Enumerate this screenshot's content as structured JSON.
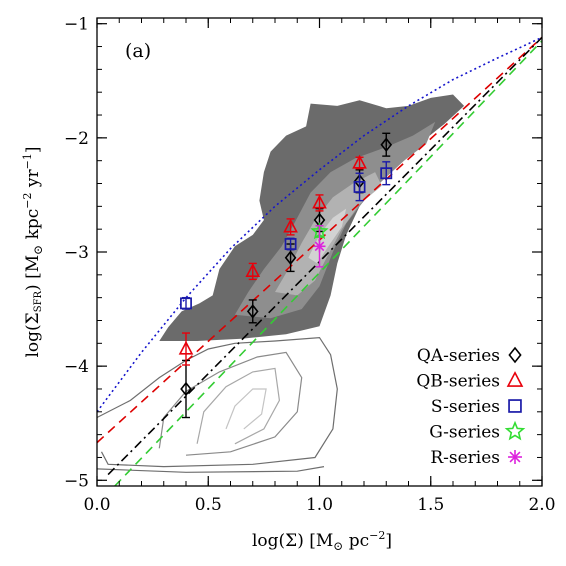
{
  "chart_data": {
    "type": "scatter",
    "panel_label": "(a)",
    "xlabel": {
      "pre": "log(Σ) [M",
      "sun": "⊙",
      "mid": " pc",
      "sup": "−2",
      "post": "]"
    },
    "ylabel": {
      "pre": "log(Σ",
      "sub": "SFR",
      "mid": ") [M",
      "sun": "⊙",
      "mid2": " kpc",
      "sup1": "−2",
      "mid3": " yr",
      "sup2": "−1",
      "post": "]"
    },
    "xlim": [
      0.0,
      2.0
    ],
    "ylim": [
      -5.05,
      -0.95
    ],
    "xticks": [
      {
        "v": 0.0,
        "label": "0.0"
      },
      {
        "v": 0.5,
        "label": "0.5"
      },
      {
        "v": 1.0,
        "label": "1.0"
      },
      {
        "v": 1.5,
        "label": "1.5"
      },
      {
        "v": 2.0,
        "label": "2.0"
      }
    ],
    "yticks": [
      {
        "v": -5,
        "label": "−5"
      },
      {
        "v": -4,
        "label": "−4"
      },
      {
        "v": -3,
        "label": "−3"
      },
      {
        "v": -2,
        "label": "−2"
      },
      {
        "v": -1,
        "label": "−1"
      }
    ],
    "grid": false,
    "legend_position": "lower-right",
    "series": [
      {
        "name": "QA-series",
        "marker": "diamond",
        "color": "#000000",
        "points": [
          {
            "x": 0.4,
            "y": -4.2,
            "err": 0.25
          },
          {
            "x": 0.7,
            "y": -3.52,
            "err": 0.1
          },
          {
            "x": 0.87,
            "y": -3.05,
            "err": 0.12
          },
          {
            "x": 1.0,
            "y": -2.72,
            "err": 0.1
          },
          {
            "x": 1.18,
            "y": -2.38,
            "err": 0.1
          },
          {
            "x": 1.3,
            "y": -2.06,
            "err": 0.1
          }
        ]
      },
      {
        "name": "QB-series",
        "marker": "triangle",
        "color": "#e8000b",
        "points": [
          {
            "x": 0.4,
            "y": -3.85,
            "err": 0.14
          },
          {
            "x": 0.7,
            "y": -3.17,
            "err": 0.07
          },
          {
            "x": 0.87,
            "y": -2.78,
            "err": 0.07
          },
          {
            "x": 1.0,
            "y": -2.57,
            "err": 0.07
          },
          {
            "x": 1.18,
            "y": -2.22,
            "err": 0.05
          }
        ]
      },
      {
        "name": "S-series",
        "marker": "square",
        "color": "#1a1aa8",
        "points": [
          {
            "x": 0.4,
            "y": -3.45,
            "err": 0.05
          },
          {
            "x": 0.87,
            "y": -2.93,
            "err": 0.05
          },
          {
            "x": 1.18,
            "y": -2.43,
            "err": 0.12
          },
          {
            "x": 1.3,
            "y": -2.31,
            "err": 0.1
          }
        ]
      },
      {
        "name": "G-series",
        "marker": "star",
        "color": "#33dd33",
        "points": [
          {
            "x": 1.0,
            "y": -2.82,
            "err": 0.05
          }
        ]
      },
      {
        "name": "R-series",
        "marker": "asterisk",
        "color": "#dd22dd",
        "points": [
          {
            "x": 1.0,
            "y": -2.95,
            "err": 0.18
          }
        ]
      }
    ],
    "fit_lines": [
      {
        "color": "#dd0000",
        "style": "dashed",
        "x": [
          0.0,
          2.0
        ],
        "y": [
          -4.67,
          -1.12
        ]
      },
      {
        "color": "#000000",
        "style": "dashdot",
        "x": [
          0.05,
          2.0
        ],
        "y": [
          -4.95,
          -1.12
        ]
      },
      {
        "color": "#33cc33",
        "style": "dashed",
        "x": [
          0.08,
          2.0
        ],
        "y": [
          -5.05,
          -1.15
        ]
      },
      {
        "color": "#1515cc",
        "style": "dotted",
        "x": [
          0.0,
          0.2,
          0.4,
          0.6,
          0.8,
          1.0,
          1.2,
          1.4,
          1.6,
          1.8,
          2.0
        ],
        "y": [
          -4.4,
          -3.88,
          -3.4,
          -2.97,
          -2.6,
          -2.28,
          -1.98,
          -1.72,
          -1.49,
          -1.3,
          -1.12
        ]
      }
    ],
    "density_fill": {
      "levels": [
        {
          "color": "#6b6b6b",
          "polygon": [
            [
              0.28,
              -3.78
            ],
            [
              0.32,
              -3.66
            ],
            [
              0.38,
              -3.52
            ],
            [
              0.46,
              -3.45
            ],
            [
              0.52,
              -3.38
            ],
            [
              0.55,
              -3.15
            ],
            [
              0.62,
              -2.95
            ],
            [
              0.7,
              -2.85
            ],
            [
              0.75,
              -2.72
            ],
            [
              0.73,
              -2.55
            ],
            [
              0.75,
              -2.3
            ],
            [
              0.78,
              -2.12
            ],
            [
              0.85,
              -1.98
            ],
            [
              0.94,
              -1.9
            ],
            [
              0.96,
              -1.7
            ],
            [
              1.08,
              -1.72
            ],
            [
              1.18,
              -1.67
            ],
            [
              1.3,
              -1.74
            ],
            [
              1.4,
              -1.72
            ],
            [
              1.5,
              -1.65
            ],
            [
              1.6,
              -1.62
            ],
            [
              1.65,
              -1.72
            ],
            [
              1.56,
              -1.88
            ],
            [
              1.45,
              -2.05
            ],
            [
              1.36,
              -2.2
            ],
            [
              1.26,
              -2.4
            ],
            [
              1.18,
              -2.6
            ],
            [
              1.12,
              -2.85
            ],
            [
              1.08,
              -3.1
            ],
            [
              1.05,
              -3.38
            ],
            [
              1.0,
              -3.65
            ],
            [
              0.85,
              -3.72
            ],
            [
              0.65,
              -3.76
            ],
            [
              0.45,
              -3.78
            ]
          ]
        },
        {
          "color": "#8e8e8e",
          "polygon": [
            [
              0.62,
              -3.55
            ],
            [
              0.68,
              -3.35
            ],
            [
              0.75,
              -3.15
            ],
            [
              0.83,
              -2.95
            ],
            [
              0.9,
              -2.7
            ],
            [
              0.96,
              -2.48
            ],
            [
              1.05,
              -2.3
            ],
            [
              1.16,
              -2.18
            ],
            [
              1.3,
              -2.08
            ],
            [
              1.42,
              -1.98
            ],
            [
              1.52,
              -1.86
            ],
            [
              1.48,
              -2.05
            ],
            [
              1.38,
              -2.2
            ],
            [
              1.28,
              -2.38
            ],
            [
              1.2,
              -2.55
            ],
            [
              1.12,
              -2.75
            ],
            [
              1.06,
              -3.0
            ],
            [
              1.0,
              -3.3
            ],
            [
              0.92,
              -3.5
            ],
            [
              0.78,
              -3.58
            ]
          ]
        },
        {
          "color": "#b2b2b2",
          "polygon": [
            [
              0.8,
              -3.35
            ],
            [
              0.86,
              -3.15
            ],
            [
              0.92,
              -2.92
            ],
            [
              0.98,
              -2.72
            ],
            [
              1.06,
              -2.52
            ],
            [
              1.15,
              -2.4
            ],
            [
              1.25,
              -2.3
            ],
            [
              1.28,
              -2.42
            ],
            [
              1.18,
              -2.58
            ],
            [
              1.1,
              -2.8
            ],
            [
              1.04,
              -3.02
            ],
            [
              0.98,
              -3.25
            ],
            [
              0.9,
              -3.38
            ]
          ]
        },
        {
          "color": "#d2d2d2",
          "polygon": [
            [
              0.95,
              -3.05
            ],
            [
              1.0,
              -2.85
            ],
            [
              1.06,
              -2.7
            ],
            [
              1.12,
              -2.62
            ],
            [
              1.1,
              -2.78
            ],
            [
              1.04,
              -2.95
            ],
            [
              0.99,
              -3.1
            ]
          ]
        }
      ],
      "contour_lines": [
        {
          "color": "#6e6e6e",
          "points": [
            [
              0.0,
              -4.45
            ],
            [
              0.15,
              -4.3
            ],
            [
              0.28,
              -4.1
            ],
            [
              0.4,
              -3.95
            ],
            [
              0.5,
              -3.85
            ],
            [
              0.62,
              -3.8
            ],
            [
              0.8,
              -3.78
            ],
            [
              1.0,
              -3.75
            ],
            [
              1.05,
              -3.9
            ],
            [
              1.08,
              -4.2
            ],
            [
              1.06,
              -4.55
            ],
            [
              0.98,
              -4.8
            ],
            [
              0.7,
              -4.86
            ],
            [
              0.3,
              -4.88
            ],
            [
              0.05,
              -4.86
            ],
            [
              0.02,
              -4.75
            ]
          ]
        },
        {
          "color": "#8a8a8a",
          "points": [
            [
              0.28,
              -4.72
            ],
            [
              0.3,
              -4.45
            ],
            [
              0.4,
              -4.22
            ],
            [
              0.55,
              -4.05
            ],
            [
              0.72,
              -3.92
            ],
            [
              0.85,
              -3.88
            ],
            [
              0.92,
              -4.1
            ],
            [
              0.9,
              -4.4
            ],
            [
              0.8,
              -4.62
            ],
            [
              0.6,
              -4.75
            ],
            [
              0.4,
              -4.78
            ]
          ]
        },
        {
          "color": "#a8a8a8",
          "points": [
            [
              0.45,
              -4.68
            ],
            [
              0.48,
              -4.4
            ],
            [
              0.58,
              -4.18
            ],
            [
              0.7,
              -4.05
            ],
            [
              0.8,
              -4.02
            ],
            [
              0.82,
              -4.3
            ],
            [
              0.75,
              -4.55
            ],
            [
              0.62,
              -4.68
            ]
          ]
        },
        {
          "color": "#c4c4c4",
          "points": [
            [
              0.58,
              -4.55
            ],
            [
              0.62,
              -4.35
            ],
            [
              0.7,
              -4.2
            ],
            [
              0.76,
              -4.2
            ],
            [
              0.74,
              -4.42
            ],
            [
              0.66,
              -4.55
            ]
          ]
        },
        {
          "color": "#6e6e6e",
          "points": [
            [
              0.0,
              -4.9
            ],
            [
              0.4,
              -4.93
            ],
            [
              0.9,
              -4.92
            ],
            [
              1.02,
              -4.88
            ]
          ]
        }
      ]
    }
  }
}
